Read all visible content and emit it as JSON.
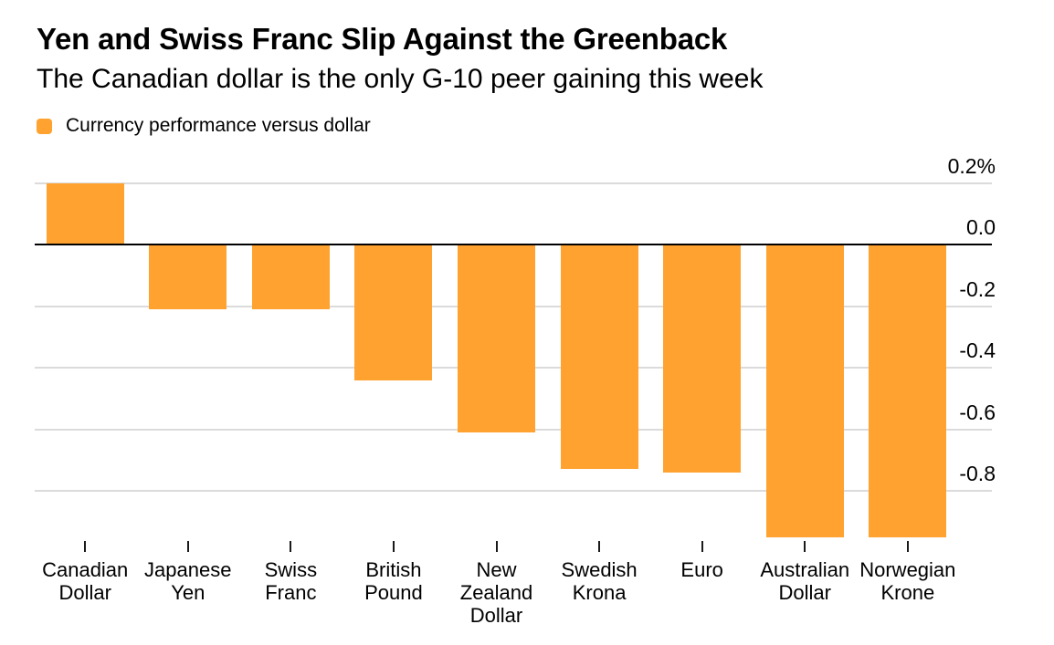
{
  "header": {
    "title": "Yen and Swiss Franc Slip Against the Greenback",
    "subtitle": "The Canadian dollar is the only G-10 peer gaining this week"
  },
  "legend": {
    "label": "Currency performance versus dollar",
    "swatch_color": "#FFA230"
  },
  "chart_data": {
    "type": "bar",
    "title": "Yen and Swiss Franc Slip Against the Greenback",
    "subtitle": "The Canadian dollar is the only G-10 peer gaining this week",
    "legend": "Currency performance versus dollar",
    "unit": "%",
    "categories": [
      "Canadian Dollar",
      "Japanese Yen",
      "Swiss Franc",
      "British Pound",
      "New Zealand Dollar",
      "Swedish Krona",
      "Euro",
      "Australian Dollar",
      "Norwegian Krone"
    ],
    "values": [
      0.2,
      -0.21,
      -0.21,
      -0.44,
      -0.61,
      -0.73,
      -0.74,
      -0.95,
      -0.95
    ],
    "yticks": [
      0.2,
      0.0,
      -0.2,
      -0.4,
      -0.6,
      -0.8
    ],
    "ytick_labels": [
      "0.2%",
      "0.0",
      "-0.2",
      "-0.4",
      "-0.6",
      "-0.8"
    ],
    "ylim": [
      -0.96,
      0.2
    ],
    "value_axis_side": "right",
    "grid": true,
    "legend_position": "top-left",
    "bar_color": "#FFA230",
    "grid_color": "#DBDBDB",
    "zero_line_color": "#000000",
    "text_color": "#000000"
  }
}
